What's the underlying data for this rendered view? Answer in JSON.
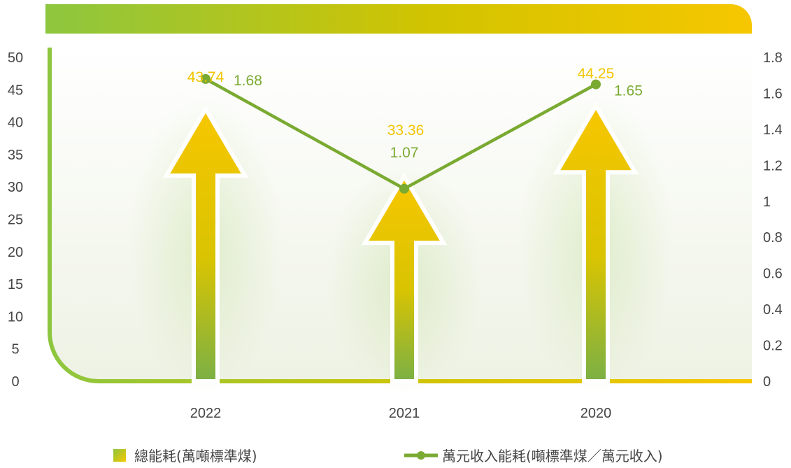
{
  "chart_data": {
    "type": "bar",
    "categories": [
      "2022",
      "2021",
      "2020"
    ],
    "series": [
      {
        "name": "總能耗(萬噸標準煤)",
        "axis": "left",
        "kind": "bar",
        "values": [
          43.74,
          33.36,
          44.25
        ],
        "labels": [
          "43.74",
          "33.36",
          "44.25"
        ]
      },
      {
        "name": "萬元收入能耗(噸標準煤／萬元收入)",
        "axis": "right",
        "kind": "line",
        "values": [
          1.68,
          1.07,
          1.65
        ],
        "labels": [
          "1.68",
          "1.07",
          "1.65"
        ]
      }
    ],
    "y_left": {
      "ylim": [
        0,
        50
      ],
      "ticks": [
        "0",
        "5",
        "10",
        "15",
        "20",
        "25",
        "30",
        "35",
        "40",
        "45",
        "50"
      ]
    },
    "y_right": {
      "ylim": [
        0,
        1.8
      ],
      "ticks": [
        "0",
        "0.2",
        "0.4",
        "0.6",
        "0.8",
        "1",
        "1.2",
        "1.4",
        "1.6",
        "1.8"
      ]
    },
    "grid": false,
    "legend_position": "bottom",
    "colors": {
      "bar_top": "#f7c600",
      "bar_bottom": "#7bb045",
      "line": "#7aaa32",
      "bar_label": "#f2c500",
      "line_label": "#7aaa32",
      "frame_left": "#8dc63f",
      "frame_right": "#f6c700"
    }
  }
}
